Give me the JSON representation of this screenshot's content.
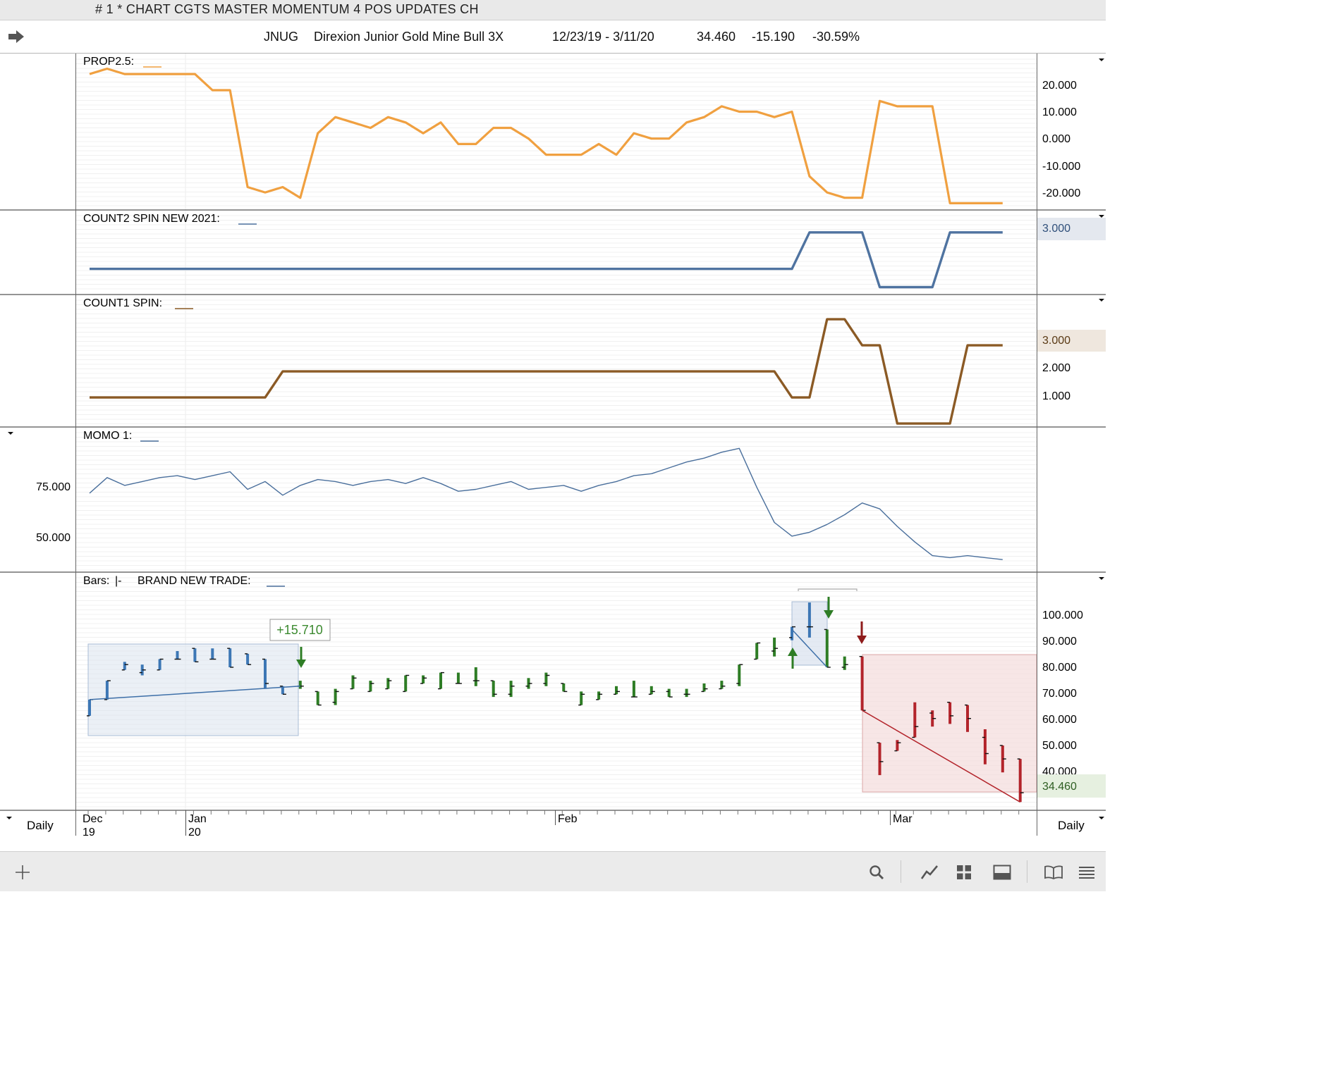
{
  "window": {
    "title": "# 1 * CHART CGTS MASTER MOMENTUM 4 POS UPDATES CH"
  },
  "header": {
    "symbol": "JNUG",
    "name": "Direxion Junior Gold Mine Bull 3X",
    "date_range": "12/23/19 - 3/11/20",
    "last": "34.460",
    "change": "-15.190",
    "change_pct": "-30.59%"
  },
  "panes": {
    "prop": {
      "label": "PROP2.5:",
      "ticks": [
        "20.000",
        "10.000",
        "0.000",
        "-10.000",
        "-20.000"
      ],
      "color": "#f0a040"
    },
    "count2": {
      "label": "COUNT2 SPIN NEW 2021:",
      "last": "3.000",
      "color": "#4f73a0"
    },
    "count1": {
      "label": "COUNT1 SPIN:",
      "last": "3.000",
      "ticks": [
        "2.000",
        "1.000"
      ],
      "color": "#8b5a25"
    },
    "momo": {
      "label": "MOMO 1:",
      "ticks": [
        "75.000",
        "50.000"
      ],
      "color": "#4a6f9c"
    },
    "bars": {
      "label": "Bars:",
      "label_glyph": "|-",
      "trade_label": "BRAND NEW TRADE:",
      "gain_badge": "+15.710",
      "ticks": [
        "100.000",
        "90.000",
        "80.000",
        "70.000",
        "60.000",
        "50.000",
        "40.000"
      ],
      "last": "34.460",
      "colors": {
        "up": "#2e7d25",
        "down": "#b3242b",
        "blue": "#3d77b5"
      }
    }
  },
  "xaxis": {
    "timeframe": "Daily",
    "months": [
      {
        "label": "Dec",
        "year": "19"
      },
      {
        "label": "Jan",
        "year": "20"
      },
      {
        "label": "Feb",
        "year": ""
      },
      {
        "label": "Mar",
        "year": ""
      }
    ]
  },
  "chart_data": [
    {
      "type": "line",
      "title": "PROP2.5",
      "ylim": [
        -27,
        28
      ],
      "values": [
        23,
        25,
        23,
        23,
        23,
        23,
        23,
        17,
        17,
        -19,
        -21,
        -19,
        -23,
        1,
        7,
        5,
        3,
        7,
        5,
        1,
        5,
        -3,
        -3,
        3,
        3,
        -1,
        -7,
        -7,
        -7,
        -3,
        -7,
        1,
        -1,
        -1,
        5,
        7,
        11,
        9,
        9,
        7,
        9,
        -15,
        -21,
        -23,
        -23,
        13,
        11,
        11,
        11,
        -25,
        -25,
        -25,
        -25
      ]
    },
    {
      "type": "line",
      "title": "COUNT2 SPIN NEW 2021",
      "ylim": [
        -0.25,
        3.3
      ],
      "values": [
        1,
        1,
        1,
        1,
        1,
        1,
        1,
        1,
        1,
        1,
        1,
        1,
        1,
        1,
        1,
        1,
        1,
        1,
        1,
        1,
        1,
        1,
        1,
        1,
        1,
        1,
        1,
        1,
        1,
        1,
        1,
        1,
        1,
        1,
        1,
        1,
        1,
        1,
        1,
        1,
        1,
        3,
        3,
        3,
        3,
        0,
        0,
        0,
        0,
        3,
        3,
        3,
        3
      ]
    },
    {
      "type": "line",
      "title": "COUNT1 SPIN",
      "ylim": [
        -0.05,
        4.3
      ],
      "values": [
        1,
        1,
        1,
        1,
        1,
        1,
        1,
        1,
        1,
        1,
        1,
        2,
        2,
        2,
        2,
        2,
        2,
        2,
        2,
        2,
        2,
        2,
        2,
        2,
        2,
        2,
        2,
        2,
        2,
        2,
        2,
        2,
        2,
        2,
        2,
        2,
        2,
        2,
        2,
        2,
        1,
        1,
        4,
        4,
        3,
        3,
        0,
        0,
        0,
        0,
        3,
        3,
        3
      ]
    },
    {
      "type": "line",
      "title": "MOMO 1",
      "ylim": [
        30,
        95
      ],
      "values": [
        69,
        77,
        73,
        75,
        77,
        78,
        76,
        78,
        80,
        71,
        75,
        68,
        73,
        76,
        75,
        73,
        75,
        76,
        74,
        77,
        74,
        70,
        71,
        73,
        75,
        71,
        72,
        73,
        70,
        73,
        75,
        78,
        79,
        82,
        85,
        87,
        90,
        92,
        72,
        54,
        47,
        49,
        53,
        58,
        64,
        61,
        52,
        44,
        37,
        36,
        37,
        36,
        35
      ]
    },
    {
      "type": "bar",
      "title": "BRAND NEW TRADE",
      "ylim": [
        29,
        110
      ],
      "bars": [
        {
          "o": 63,
          "h": 69,
          "l": 63,
          "c": 69,
          "k": "b"
        },
        {
          "o": 69,
          "h": 76,
          "l": 69,
          "c": 76,
          "k": "b"
        },
        {
          "o": 80,
          "h": 83,
          "l": 80,
          "c": 82,
          "k": "b"
        },
        {
          "o": 79,
          "h": 82,
          "l": 78,
          "c": 80,
          "k": "b"
        },
        {
          "o": 80,
          "h": 84,
          "l": 80,
          "c": 84,
          "k": "b"
        },
        {
          "o": 84,
          "h": 87,
          "l": 84,
          "c": 84,
          "k": "b"
        },
        {
          "o": 88,
          "h": 88,
          "l": 83,
          "c": 83,
          "k": "b"
        },
        {
          "o": 84,
          "h": 88,
          "l": 84,
          "c": 84,
          "k": "b"
        },
        {
          "o": 88,
          "h": 88,
          "l": 81,
          "c": 81,
          "k": "b"
        },
        {
          "o": 86,
          "h": 86,
          "l": 82,
          "c": 82,
          "k": "b"
        },
        {
          "o": 84,
          "h": 84,
          "l": 73,
          "c": 75,
          "k": "b"
        },
        {
          "o": 74,
          "h": 74,
          "l": 71,
          "c": 71,
          "k": "b"
        },
        {
          "o": 74,
          "h": 76,
          "l": 73,
          "c": 74,
          "k": "g"
        },
        {
          "o": 72,
          "h": 72,
          "l": 67,
          "c": 67,
          "k": "g"
        },
        {
          "o": 68,
          "h": 73,
          "l": 67,
          "c": 72,
          "k": "g"
        },
        {
          "o": 73,
          "h": 78,
          "l": 73,
          "c": 77,
          "k": "g"
        },
        {
          "o": 72,
          "h": 76,
          "l": 72,
          "c": 75,
          "k": "g"
        },
        {
          "o": 73,
          "h": 77,
          "l": 73,
          "c": 76,
          "k": "g"
        },
        {
          "o": 72,
          "h": 78,
          "l": 72,
          "c": 78,
          "k": "g"
        },
        {
          "o": 75,
          "h": 78,
          "l": 75,
          "c": 77,
          "k": "g"
        },
        {
          "o": 73,
          "h": 79,
          "l": 73,
          "c": 79,
          "k": "g"
        },
        {
          "o": 75,
          "h": 79,
          "l": 75,
          "c": 75,
          "k": "g"
        },
        {
          "o": 76,
          "h": 81,
          "l": 74,
          "c": 76,
          "k": "g"
        },
        {
          "o": 76,
          "h": 76,
          "l": 70,
          "c": 71,
          "k": "g"
        },
        {
          "o": 71,
          "h": 76,
          "l": 70,
          "c": 74,
          "k": "g"
        },
        {
          "o": 74,
          "h": 77,
          "l": 73,
          "c": 75,
          "k": "g"
        },
        {
          "o": 75,
          "h": 79,
          "l": 74,
          "c": 78,
          "k": "g"
        },
        {
          "o": 75,
          "h": 75,
          "l": 72,
          "c": 72,
          "k": "g"
        },
        {
          "o": 67,
          "h": 72,
          "l": 67,
          "c": 71,
          "k": "g"
        },
        {
          "o": 69,
          "h": 72,
          "l": 69,
          "c": 71,
          "k": "g"
        },
        {
          "o": 71,
          "h": 74,
          "l": 71,
          "c": 72,
          "k": "g"
        },
        {
          "o": 70,
          "h": 76,
          "l": 70,
          "c": 70,
          "k": "g"
        },
        {
          "o": 71,
          "h": 74,
          "l": 71,
          "c": 72,
          "k": "g"
        },
        {
          "o": 72,
          "h": 73,
          "l": 70,
          "c": 70,
          "k": "g"
        },
        {
          "o": 71,
          "h": 73,
          "l": 70,
          "c": 71,
          "k": "g"
        },
        {
          "o": 72,
          "h": 75,
          "l": 72,
          "c": 73,
          "k": "g"
        },
        {
          "o": 73,
          "h": 76,
          "l": 73,
          "c": 74,
          "k": "g"
        },
        {
          "o": 75,
          "h": 82,
          "l": 74,
          "c": 82,
          "k": "g"
        },
        {
          "o": 84,
          "h": 90,
          "l": 84,
          "c": 90,
          "k": "g"
        },
        {
          "o": 87,
          "h": 92,
          "l": 85,
          "c": 88,
          "k": "g"
        },
        {
          "o": 92,
          "h": 96,
          "l": 91,
          "c": 96,
          "k": "b"
        },
        {
          "o": 96,
          "h": 105,
          "l": 92,
          "c": 96,
          "k": "b"
        },
        {
          "o": 95,
          "h": 95,
          "l": 81,
          "c": 81,
          "k": "g"
        },
        {
          "o": 81,
          "h": 85,
          "l": 80,
          "c": 82,
          "k": "g"
        },
        {
          "o": 85,
          "h": 85,
          "l": 65,
          "c": 65,
          "k": "r"
        },
        {
          "o": 53,
          "h": 53,
          "l": 41,
          "c": 46,
          "k": "r"
        },
        {
          "o": 50,
          "h": 54,
          "l": 50,
          "c": 53,
          "k": "r"
        },
        {
          "o": 55,
          "h": 68,
          "l": 55,
          "c": 59,
          "k": "r"
        },
        {
          "o": 64,
          "h": 65,
          "l": 59,
          "c": 62,
          "k": "r"
        },
        {
          "o": 68,
          "h": 68,
          "l": 60,
          "c": 63,
          "k": "r"
        },
        {
          "o": 67,
          "h": 67,
          "l": 57,
          "c": 62,
          "k": "r"
        },
        {
          "o": 55,
          "h": 58,
          "l": 45,
          "c": 49,
          "k": "r"
        },
        {
          "o": 52,
          "h": 52,
          "l": 42,
          "c": 47,
          "k": "r"
        },
        {
          "o": 47,
          "h": 47,
          "l": 31,
          "c": 34.46,
          "k": "r"
        }
      ],
      "trend_long": [
        [
          0,
          69
        ],
        [
          12,
          74
        ]
      ],
      "trend_short": [
        [
          44,
          65
        ],
        [
          53,
          31
        ]
      ]
    }
  ]
}
